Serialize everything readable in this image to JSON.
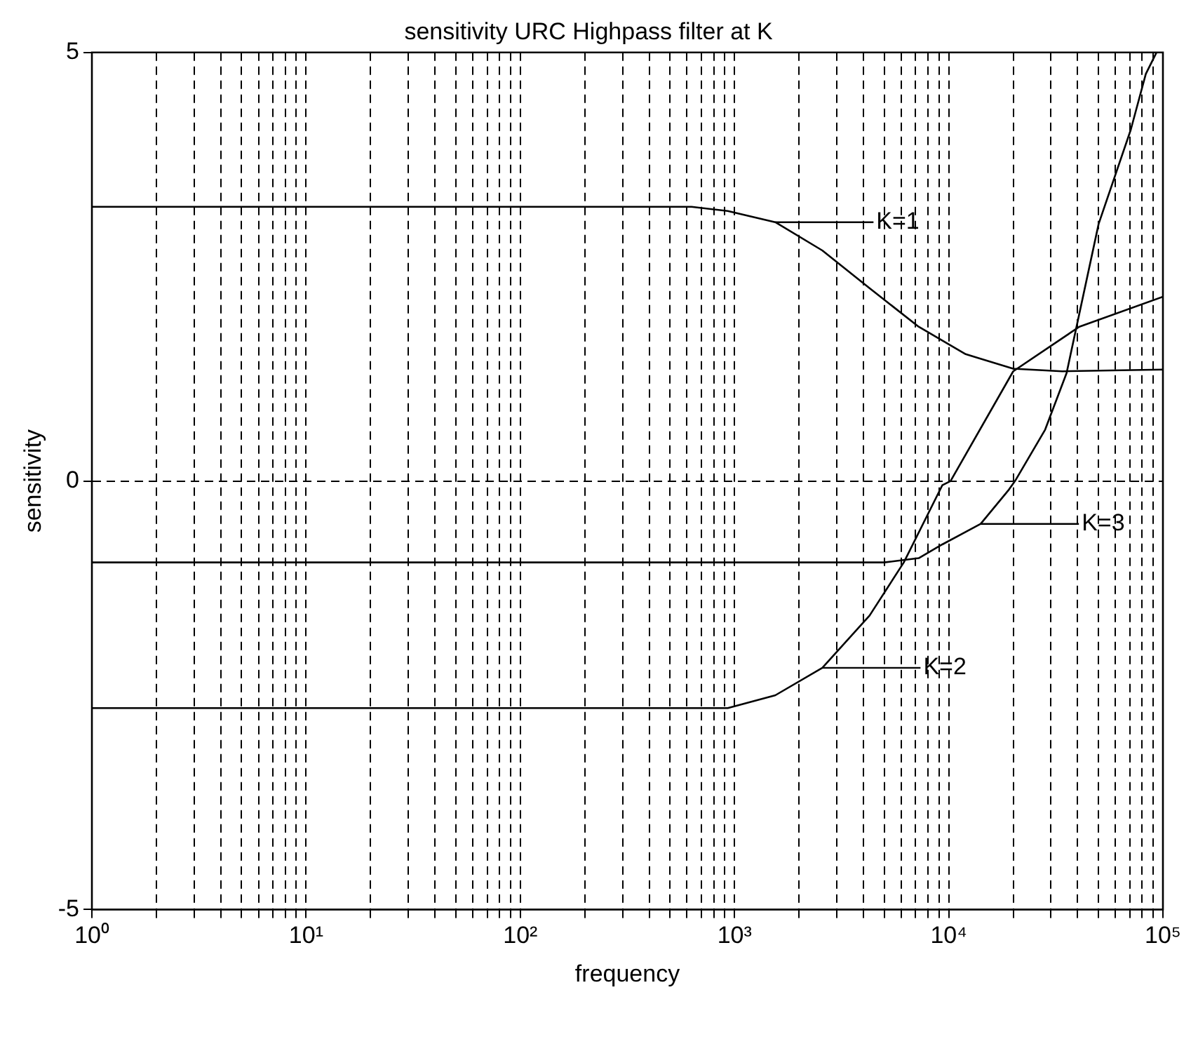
{
  "chart_data": {
    "type": "line",
    "title": "sensitivity URC Highpass filter at K",
    "xlabel": "frequency",
    "ylabel": "sensitivity",
    "log": "x",
    "grid": true,
    "legend": false,
    "marker": "none",
    "line_style": "solid",
    "xlim": [
      1,
      100000
    ],
    "ylim": [
      -5,
      5
    ],
    "yticks": [
      -5,
      0,
      5
    ],
    "xticks": [
      {
        "value": 1,
        "label": "10⁰"
      },
      {
        "value": 2,
        "label": null
      },
      {
        "value": 3,
        "label": null
      },
      {
        "value": 4,
        "label": null
      },
      {
        "value": 5,
        "label": null
      },
      {
        "value": 6,
        "label": null
      },
      {
        "value": 7,
        "label": null
      },
      {
        "value": 8,
        "label": null
      },
      {
        "value": 9,
        "label": null
      },
      {
        "value": 10,
        "label": "10¹"
      },
      {
        "value": 20,
        "label": null
      },
      {
        "value": 30,
        "label": null
      },
      {
        "value": 40,
        "label": null
      },
      {
        "value": 50,
        "label": null
      },
      {
        "value": 60,
        "label": null
      },
      {
        "value": 70,
        "label": null
      },
      {
        "value": 80,
        "label": null
      },
      {
        "value": 90,
        "label": null
      },
      {
        "value": 100,
        "label": "10²"
      },
      {
        "value": 200,
        "label": null
      },
      {
        "value": 300,
        "label": null
      },
      {
        "value": 400,
        "label": null
      },
      {
        "value": 500,
        "label": null
      },
      {
        "value": 600,
        "label": null
      },
      {
        "value": 700,
        "label": null
      },
      {
        "value": 800,
        "label": null
      },
      {
        "value": 900,
        "label": null
      },
      {
        "value": 1000,
        "label": "10³"
      },
      {
        "value": 2000,
        "label": null
      },
      {
        "value": 3000,
        "label": null
      },
      {
        "value": 4000,
        "label": null
      },
      {
        "value": 5000,
        "label": null
      },
      {
        "value": 6000,
        "label": null
      },
      {
        "value": 7000,
        "label": null
      },
      {
        "value": 8000,
        "label": null
      },
      {
        "value": 9000,
        "label": null
      },
      {
        "value": 10000,
        "label": "10⁴"
      },
      {
        "value": 20000,
        "label": null
      },
      {
        "value": 30000,
        "label": null
      },
      {
        "value": 40000,
        "label": null
      },
      {
        "value": 50000,
        "label": null
      },
      {
        "value": 60000,
        "label": null
      },
      {
        "value": 70000,
        "label": null
      },
      {
        "value": 80000,
        "label": null
      },
      {
        "value": 90000,
        "label": null
      },
      {
        "value": 100000,
        "label": "10⁵"
      }
    ],
    "series": [
      {
        "color": "#000000",
        "x": [
          1,
          630,
          930,
          1550,
          2570,
          4270,
          7240,
          12000,
          20000,
          33900,
          100000
        ],
        "values": [
          3.2,
          3.2,
          3.15,
          3.02,
          2.69,
          2.25,
          1.8,
          1.48,
          1.31,
          1.28,
          1.3
        ]
      },
      {
        "color": "#000000",
        "x": [
          1,
          930,
          1550,
          2570,
          4270,
          6170,
          9330,
          10200,
          20000,
          40700,
          100000
        ],
        "values": [
          -2.65,
          -2.65,
          -2.5,
          -2.18,
          -1.57,
          -0.95,
          -0.05,
          0,
          1.28,
          1.8,
          2.15
        ]
      },
      {
        "color": "#000000",
        "x": [
          1,
          5000,
          7240,
          9330,
          14100,
          19100,
          20400,
          28200,
          35500,
          50100,
          70800,
          83200,
          93300
        ],
        "values": [
          -0.95,
          -0.95,
          -0.9,
          -0.74,
          -0.5,
          -0.1,
          0,
          0.6,
          1.26,
          3.0,
          4.1,
          4.75,
          5
        ]
      }
    ],
    "annotations": [
      "K=1",
      "K=2",
      "K=3"
    ]
  }
}
